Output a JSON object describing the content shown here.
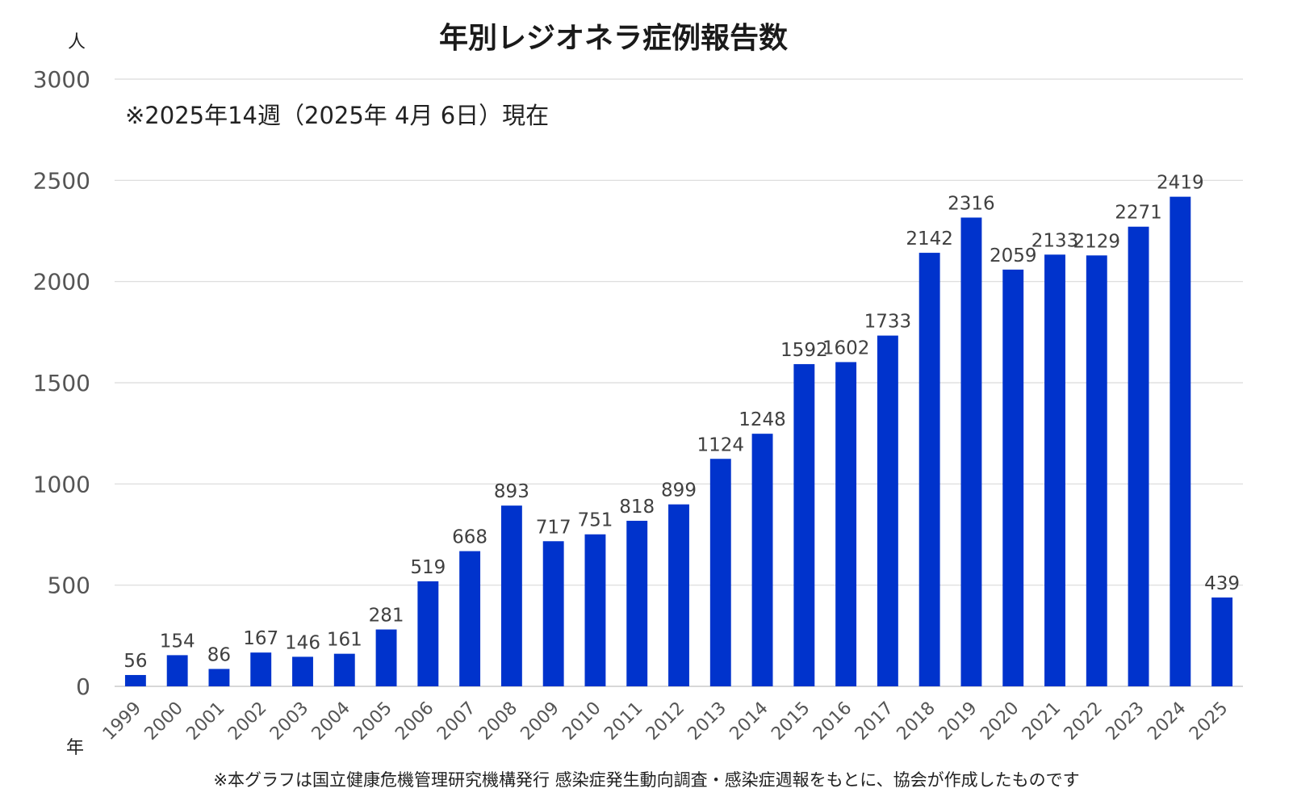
{
  "chart_data": {
    "type": "bar",
    "title": "年別レジオネラ症例報告数",
    "ylabel": "人",
    "xlabel": "年",
    "note": "※2025年14週（2025年 4月 6日）現在",
    "source": "※本グラフは国立健康危機管理研究機構発行 感染症発生動向調査・感染症週報をもとに、協会が作成したものです",
    "categories": [
      "1999",
      "2000",
      "2001",
      "2002",
      "2003",
      "2004",
      "2005",
      "2006",
      "2007",
      "2008",
      "2009",
      "2010",
      "2011",
      "2012",
      "2013",
      "2014",
      "2015",
      "2016",
      "2017",
      "2018",
      "2019",
      "2020",
      "2021",
      "2022",
      "2023",
      "2024",
      "2025"
    ],
    "values": [
      56,
      154,
      86,
      167,
      146,
      161,
      281,
      519,
      668,
      893,
      717,
      751,
      818,
      899,
      1124,
      1248,
      1592,
      1602,
      1733,
      2142,
      2316,
      2059,
      2133,
      2129,
      2271,
      2419,
      439
    ],
    "ylim": [
      0,
      3000
    ],
    "yticks": [
      0,
      500,
      1000,
      1500,
      2000,
      2500,
      3000
    ],
    "grid": true,
    "legend": "none",
    "bar_color": "#0033cc"
  }
}
